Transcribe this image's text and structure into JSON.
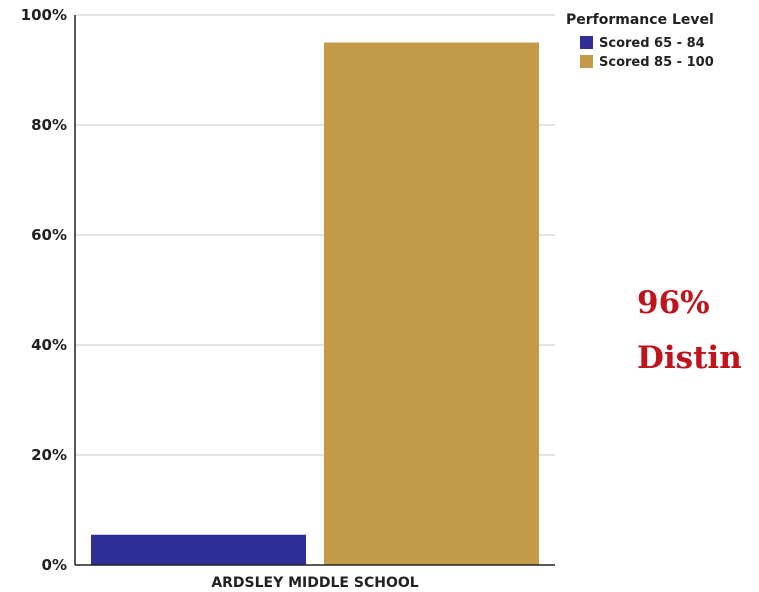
{
  "chart_data": {
    "type": "bar",
    "categories": [
      "ARDSLEY MIDDLE SCHOOL"
    ],
    "series": [
      {
        "name": "Scored 65 - 84",
        "color": "#2e2e96",
        "values": [
          5.5
        ]
      },
      {
        "name": "Scored 85 - 100",
        "color": "#c49b48",
        "values": [
          95
        ]
      }
    ],
    "ylim": [
      0,
      100
    ],
    "yticks": [
      "0%",
      "20%",
      "40%",
      "60%",
      "80%",
      "100%"
    ],
    "ytick_values": [
      0,
      20,
      40,
      60,
      80,
      100
    ],
    "grid": true,
    "legend": {
      "title": "Performance Level",
      "placement": "top-right"
    }
  },
  "annotation": {
    "line1": "96%",
    "line2": "Distin"
  }
}
